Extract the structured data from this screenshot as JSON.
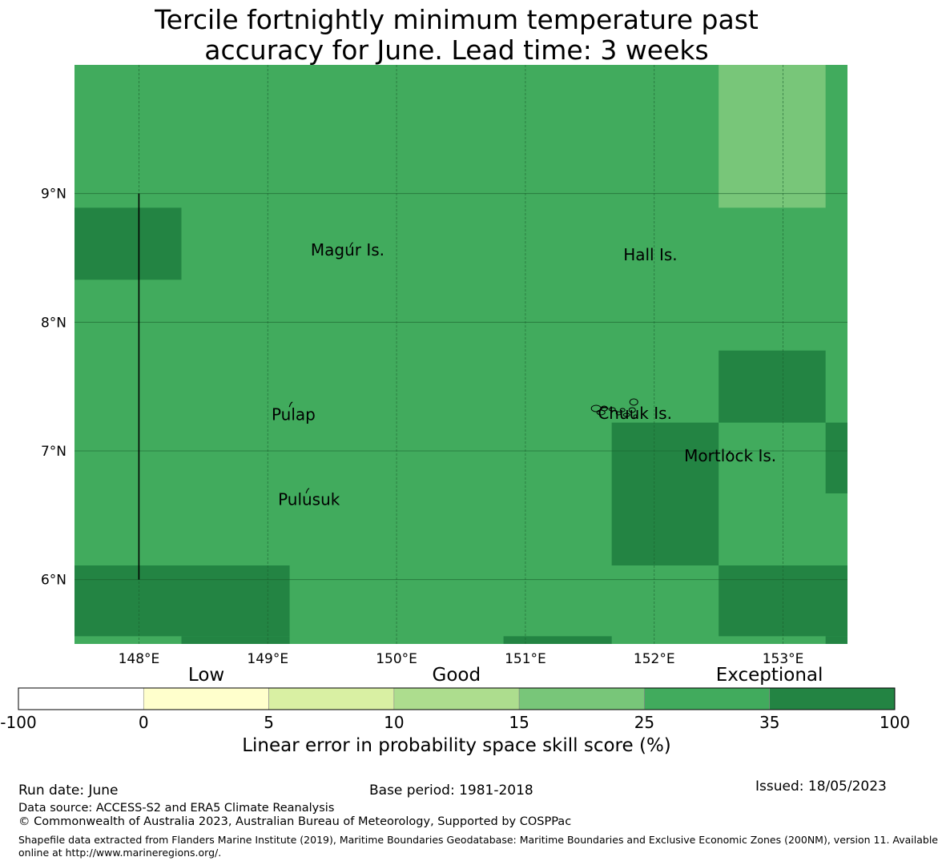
{
  "title": {
    "line1": "Tercile fortnightly minimum temperature past",
    "line2": "accuracy for June. Lead time: 3 weeks"
  },
  "map": {
    "lon_range": [
      147.5,
      153.5
    ],
    "lat_range": [
      5.5,
      10.0
    ],
    "lon_ticks": [
      {
        "value": 148,
        "label": "148°E"
      },
      {
        "value": 149,
        "label": "149°E"
      },
      {
        "value": 150,
        "label": "150°E"
      },
      {
        "value": 151,
        "label": "151°E"
      },
      {
        "value": 152,
        "label": "152°E"
      },
      {
        "value": 153,
        "label": "153°E"
      }
    ],
    "lat_ticks": [
      {
        "value": 9,
        "label": "9°N"
      },
      {
        "value": 8,
        "label": "8°N"
      },
      {
        "value": 7,
        "label": "7°N"
      },
      {
        "value": 6,
        "label": "6°N"
      }
    ],
    "base_color": "#41ab5d",
    "grid_color": "#1a5c2c",
    "cells": [
      {
        "lon": [
          147.5,
          148.33
        ],
        "lat": [
          8.33,
          8.89
        ],
        "color": "#238443"
      },
      {
        "lon": [
          152.5,
          153.33
        ],
        "lat": [
          8.89,
          10.0
        ],
        "color": "#78c679"
      },
      {
        "lon": [
          152.5,
          153.33
        ],
        "lat": [
          7.22,
          7.78
        ],
        "color": "#238443"
      },
      {
        "lon": [
          151.67,
          152.5
        ],
        "lat": [
          6.11,
          7.22
        ],
        "color": "#238443"
      },
      {
        "lon": [
          153.33,
          153.5
        ],
        "lat": [
          6.67,
          7.22
        ],
        "color": "#238443"
      },
      {
        "lon": [
          147.5,
          149.17
        ],
        "lat": [
          5.56,
          6.11
        ],
        "color": "#238443"
      },
      {
        "lon": [
          148.33,
          149.17
        ],
        "lat": [
          5.5,
          5.56
        ],
        "color": "#238443"
      },
      {
        "lon": [
          152.5,
          153.5
        ],
        "lat": [
          5.56,
          6.11
        ],
        "color": "#238443"
      },
      {
        "lon": [
          153.33,
          153.5
        ],
        "lat": [
          5.5,
          5.56
        ],
        "color": "#238443"
      },
      {
        "lon": [
          150.83,
          151.67
        ],
        "lat": [
          5.5,
          5.56
        ],
        "color": "#238443"
      }
    ],
    "boundary_line": {
      "lon": 148.0,
      "lat": [
        6.0,
        9.0
      ]
    },
    "places": [
      {
        "name": "Magur Is.",
        "lon": 149.62,
        "lat": 8.52
      },
      {
        "name": "Hall Is.",
        "lon": 151.97,
        "lat": 8.48
      },
      {
        "name": "Pulap",
        "lon": 149.2,
        "lat": 7.24
      },
      {
        "name": "Chuuk Is.",
        "lon": 151.85,
        "lat": 7.25
      },
      {
        "name": "Mortlock Is.",
        "lon": 152.59,
        "lat": 6.92
      },
      {
        "name": "Pulusuk",
        "lon": 149.32,
        "lat": 6.58
      }
    ],
    "islands": [
      {
        "lon": 149.65,
        "lat": 8.6
      },
      {
        "lon": 149.18,
        "lat": 7.36
      },
      {
        "lon": 149.31,
        "lat": 6.69
      },
      {
        "lon": 152.58,
        "lat": 6.98
      }
    ]
  },
  "colorbar": {
    "categories": [
      {
        "label": "Low",
        "center_index": 1.5
      },
      {
        "label": "Good",
        "center_index": 3.5
      },
      {
        "label": "Exceptional",
        "center_index": 6.0
      }
    ],
    "bins": [
      {
        "from": -100,
        "to": 0,
        "color": "#ffffff"
      },
      {
        "from": 0,
        "to": 5,
        "color": "#ffffcc"
      },
      {
        "from": 5,
        "to": 10,
        "color": "#d9f0a3"
      },
      {
        "from": 10,
        "to": 15,
        "color": "#addd8e"
      },
      {
        "from": 15,
        "to": 25,
        "color": "#78c679"
      },
      {
        "from": 25,
        "to": 35,
        "color": "#41ab5d"
      },
      {
        "from": 35,
        "to": 100,
        "color": "#238443"
      }
    ],
    "ticks": [
      "-100",
      "0",
      "5",
      "10",
      "15",
      "25",
      "35",
      "100"
    ],
    "label": "Linear error in probability space skill score (%)"
  },
  "footer": {
    "run_date": "Run date: June",
    "base_period": "Base period: 1981-2018",
    "issued": "Issued: 18/05/2023",
    "data_source": "Data source: ACCESS-S2 and ERA5 Climate Reanalysis",
    "copyright": "© Commonwealth of Australia 2023, Australian Bureau of Meteorology, Supported by COSPPac",
    "shapefile_line1": "Shapefile data extracted from Flanders Marine Institute (2019), Maritime Boundaries Geodatabase: Maritime Boundaries and Exclusive Economic Zones (200NM), version 11. Available",
    "shapefile_line2": "online at http://www.marineregions.org/."
  }
}
